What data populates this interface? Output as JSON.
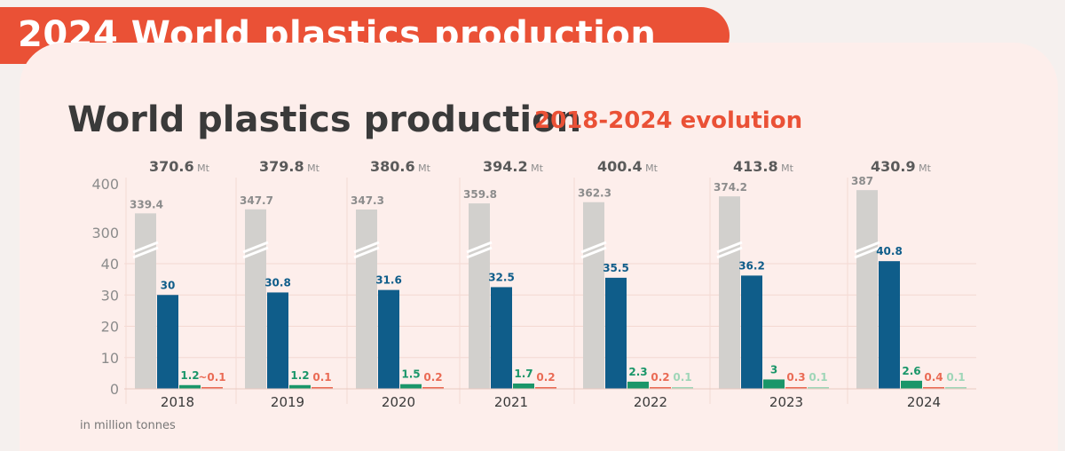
{
  "banner": {
    "title": "2024 World plastics production"
  },
  "heading": {
    "title": "World plastics production",
    "subtitle": "2018-2024 evolution"
  },
  "footnote": "in million tonnes",
  "colors": {
    "banner": "#ea5136",
    "card": "#fdeeeb",
    "total_bar": "#d2d0cd",
    "series_blue": "#0f5d8a",
    "series_green": "#1a9669",
    "series_red": "#ea6b55",
    "series_lightgreen": "#9fd6b8",
    "label_grey": "#8c8c8c",
    "text_dark": "#3a3a3a"
  },
  "chart_data": {
    "type": "bar",
    "title": "World plastics production",
    "subtitle": "2018-2024 evolution",
    "ylabel": "in million tonnes",
    "axis_break": true,
    "lower_ylim": [
      0,
      40
    ],
    "upper_ylim": [
      300,
      400
    ],
    "yticks_lower": [
      "0",
      "10",
      "20",
      "30",
      "40"
    ],
    "yticks_upper": [
      "300",
      "400"
    ],
    "total_unit": "Mt",
    "categories": [
      "2018",
      "2019",
      "2020",
      "2021",
      "2022",
      "2023",
      "2024"
    ],
    "totals": [
      "370.6",
      "379.8",
      "380.6",
      "394.2",
      "400.4",
      "413.8",
      "430.9"
    ],
    "series": [
      {
        "name": "grey",
        "values": [
          339.4,
          347.7,
          347.3,
          359.8,
          362.3,
          374.2,
          387
        ],
        "labels": [
          "339.4",
          "347.7",
          "347.3",
          "359.8",
          "362.3",
          "374.2",
          "387"
        ]
      },
      {
        "name": "blue",
        "values": [
          30,
          30.8,
          31.6,
          32.5,
          35.5,
          36.2,
          40.8
        ],
        "labels": [
          "30",
          "30.8",
          "31.6",
          "32.5",
          "35.5",
          "36.2",
          "40.8"
        ]
      },
      {
        "name": "green",
        "values": [
          1.2,
          1.2,
          1.5,
          1.7,
          2.3,
          3,
          2.6
        ],
        "labels": [
          "1.2",
          "1.2",
          "1.5",
          "1.7",
          "2.3",
          "3",
          "2.6"
        ]
      },
      {
        "name": "red",
        "values": [
          0.1,
          0.1,
          0.2,
          0.2,
          0.2,
          0.3,
          0.4
        ],
        "labels": [
          "~0.1",
          "0.1",
          "0.2",
          "0.2",
          "0.2",
          "0.3",
          "0.4"
        ]
      },
      {
        "name": "lightgreen",
        "values": [
          null,
          null,
          null,
          null,
          0.1,
          0.1,
          0.1
        ],
        "labels": [
          "",
          "",
          "",
          "",
          "0.1",
          "0.1",
          "0.1"
        ]
      }
    ]
  }
}
